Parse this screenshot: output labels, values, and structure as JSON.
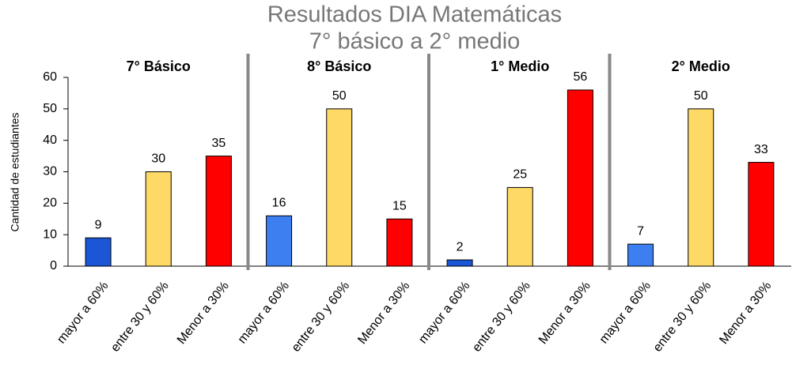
{
  "chart_data": {
    "type": "bar",
    "title": "Resultados DIA Matemáticas",
    "subtitle": "7° básico a 2° medio",
    "y_label": "Cantidad de estudiantes",
    "groups": [
      "7° Básico",
      "8° Básico",
      "1° Medio",
      "2° Medio"
    ],
    "categories": [
      "mayor a 60%",
      "entre 30 y 60%",
      "Menor a 30%",
      "mayor a 60%",
      "entre 30 y 60%",
      "Menor a 30%",
      "mayor a 60%",
      "entre 30 y 60%",
      "Menor a 30%",
      "mayor a 60%",
      "entre 30 y 60%",
      "Menor a 30%"
    ],
    "values": [
      9,
      30,
      35,
      16,
      50,
      15,
      2,
      25,
      56,
      7,
      50,
      33
    ],
    "colors": [
      "#1a56d6",
      "#ffd966",
      "#ff0000",
      "#3d7ff0",
      "#ffd966",
      "#ff0000",
      "#1a56d6",
      "#ffd966",
      "#ff0000",
      "#3d7ff0",
      "#ffd966",
      "#ff0000"
    ],
    "ylim": [
      0,
      60
    ],
    "yticks": [
      0,
      10,
      20,
      30,
      40,
      50,
      60
    ],
    "grid": false
  }
}
